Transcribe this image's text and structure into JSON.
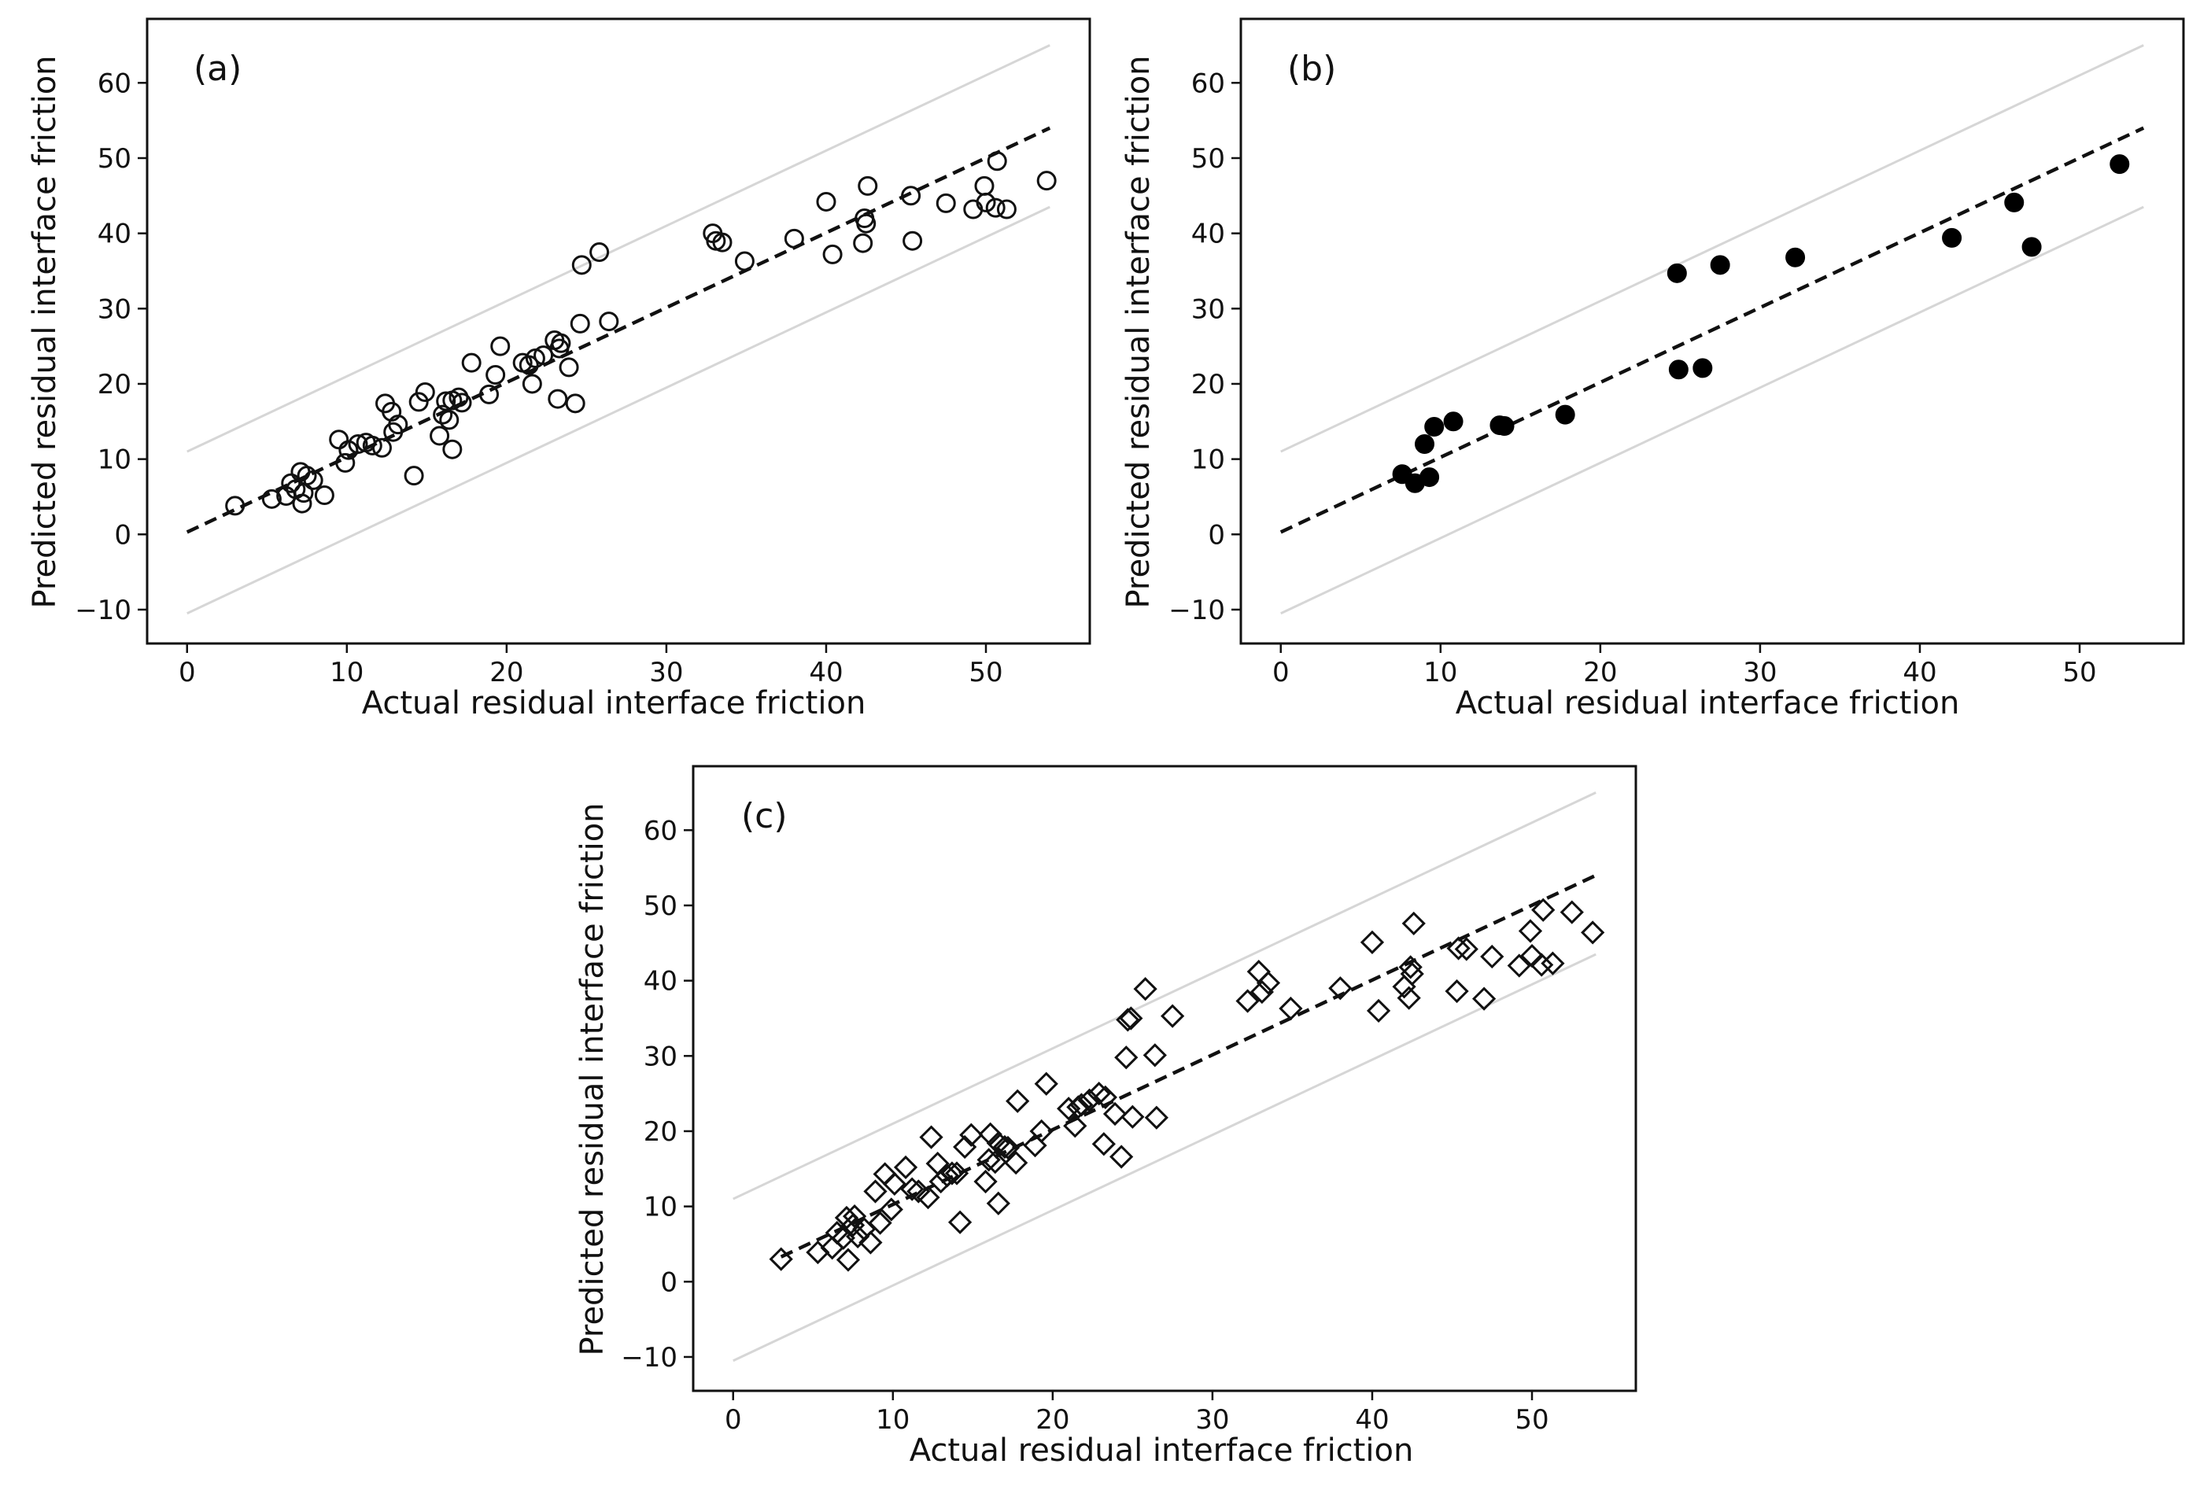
{
  "chart_data": [
    {
      "type": "scatter",
      "panel_label": "(a)",
      "marker": "open-circle",
      "xlabel": "Actual residual interface friction",
      "ylabel": "Predicted residual interface friction",
      "xlim": [
        -2.5,
        56.5
      ],
      "ylim": [
        -14.5,
        68.5
      ],
      "xticks": [
        0,
        10,
        20,
        30,
        40,
        50
      ],
      "yticks": [
        -10,
        0,
        10,
        20,
        30,
        40,
        50,
        60
      ],
      "xtick_labels": [
        "0",
        "10",
        "20",
        "30",
        "40",
        "50"
      ],
      "ytick_labels": [
        "−10",
        "0",
        "10",
        "20",
        "30",
        "40",
        "50",
        "60"
      ],
      "fit_line": {
        "style": "dashed",
        "points": [
          [
            0,
            0.3
          ],
          [
            54,
            54
          ]
        ]
      },
      "bounds": [
        {
          "style": "solid-lightgray",
          "points": [
            [
              0,
              11
            ],
            [
              54,
              65
            ]
          ]
        },
        {
          "style": "solid-lightgray",
          "points": [
            [
              0,
              -10.5
            ],
            [
              54,
              43.5
            ]
          ]
        }
      ],
      "points": [
        [
          3,
          3.8
        ],
        [
          5.3,
          4.7
        ],
        [
          6.2,
          5.1
        ],
        [
          6.5,
          6.8
        ],
        [
          6.8,
          6.0
        ],
        [
          7.1,
          8.3
        ],
        [
          7.2,
          4.1
        ],
        [
          7.5,
          7.8
        ],
        [
          7.3,
          5.5
        ],
        [
          7.9,
          7.2
        ],
        [
          8.6,
          5.2
        ],
        [
          9.5,
          12.6
        ],
        [
          9.9,
          9.5
        ],
        [
          10.1,
          11.2
        ],
        [
          10.7,
          12.0
        ],
        [
          11.2,
          12.2
        ],
        [
          11.6,
          11.8
        ],
        [
          12.2,
          11.5
        ],
        [
          12.4,
          17.4
        ],
        [
          12.8,
          16.3
        ],
        [
          12.9,
          13.6
        ],
        [
          13.2,
          14.6
        ],
        [
          14.2,
          7.8
        ],
        [
          14.5,
          17.6
        ],
        [
          14.9,
          18.9
        ],
        [
          15.8,
          13.1
        ],
        [
          16.0,
          15.9
        ],
        [
          16.2,
          17.7
        ],
        [
          16.4,
          15.2
        ],
        [
          16.6,
          11.3
        ],
        [
          16.6,
          17.8
        ],
        [
          17.0,
          18.2
        ],
        [
          17.2,
          17.5
        ],
        [
          17.8,
          22.8
        ],
        [
          18.9,
          18.6
        ],
        [
          19.3,
          21.2
        ],
        [
          19.6,
          25.0
        ],
        [
          21.0,
          22.8
        ],
        [
          21.4,
          22.5
        ],
        [
          21.6,
          20.0
        ],
        [
          21.8,
          23.4
        ],
        [
          22.3,
          23.8
        ],
        [
          23.0,
          25.8
        ],
        [
          23.2,
          18.0
        ],
        [
          23.3,
          24.7
        ],
        [
          23.4,
          25.4
        ],
        [
          23.9,
          22.2
        ],
        [
          24.3,
          17.4
        ],
        [
          24.6,
          28.0
        ],
        [
          24.7,
          35.8
        ],
        [
          25.8,
          37.5
        ],
        [
          26.4,
          28.3
        ],
        [
          32.9,
          40.0
        ],
        [
          33.1,
          39.0
        ],
        [
          33.5,
          38.8
        ],
        [
          34.9,
          36.3
        ],
        [
          38.0,
          39.3
        ],
        [
          40.0,
          44.2
        ],
        [
          40.4,
          37.2
        ],
        [
          42.3,
          38.7
        ],
        [
          42.4,
          42.0
        ],
        [
          42.5,
          41.3
        ],
        [
          42.6,
          46.3
        ],
        [
          45.3,
          45.0
        ],
        [
          45.4,
          39.0
        ],
        [
          47.5,
          44.0
        ],
        [
          49.2,
          43.2
        ],
        [
          49.9,
          46.3
        ],
        [
          50.0,
          44.1
        ],
        [
          50.6,
          43.4
        ],
        [
          50.7,
          49.6
        ],
        [
          51.3,
          43.2
        ],
        [
          53.8,
          47.0
        ]
      ]
    },
    {
      "type": "scatter",
      "panel_label": "(b)",
      "marker": "filled-circle",
      "xlabel": "Actual residual interface friction",
      "ylabel": "Predicted residual interface friction",
      "xlim": [
        -2.5,
        56.5
      ],
      "ylim": [
        -14.5,
        68.5
      ],
      "xticks": [
        0,
        10,
        20,
        30,
        40,
        50
      ],
      "yticks": [
        -10,
        0,
        10,
        20,
        30,
        40,
        50,
        60
      ],
      "xtick_labels": [
        "0",
        "10",
        "20",
        "30",
        "40",
        "50"
      ],
      "ytick_labels": [
        "−10",
        "0",
        "10",
        "20",
        "30",
        "40",
        "50",
        "60"
      ],
      "fit_line": {
        "style": "dashed",
        "points": [
          [
            0,
            0.3
          ],
          [
            54,
            54
          ]
        ]
      },
      "bounds": [
        {
          "style": "solid-lightgray",
          "points": [
            [
              0,
              11
            ],
            [
              54,
              65
            ]
          ]
        },
        {
          "style": "solid-lightgray",
          "points": [
            [
              0,
              -10.5
            ],
            [
              54,
              43.5
            ]
          ]
        }
      ],
      "points": [
        [
          7.6,
          8.0
        ],
        [
          8.4,
          6.8
        ],
        [
          9.0,
          12.0
        ],
        [
          9.3,
          7.6
        ],
        [
          9.6,
          14.3
        ],
        [
          10.8,
          15.0
        ],
        [
          13.7,
          14.5
        ],
        [
          14.0,
          14.4
        ],
        [
          17.8,
          15.9
        ],
        [
          24.8,
          34.7
        ],
        [
          24.9,
          21.9
        ],
        [
          26.4,
          22.1
        ],
        [
          27.5,
          35.8
        ],
        [
          32.2,
          36.8
        ],
        [
          42.0,
          39.4
        ],
        [
          45.9,
          44.1
        ],
        [
          47.0,
          38.2
        ],
        [
          52.5,
          49.2
        ]
      ]
    },
    {
      "type": "scatter",
      "panel_label": "(c)",
      "marker": "open-diamond",
      "xlabel": "Actual residual interface friction",
      "ylabel": "Predicted residual interface friction",
      "xlim": [
        -2.5,
        56.5
      ],
      "ylim": [
        -14.5,
        68.5
      ],
      "xticks": [
        0,
        10,
        20,
        30,
        40,
        50
      ],
      "yticks": [
        -10,
        0,
        10,
        20,
        30,
        40,
        50,
        60
      ],
      "xtick_labels": [
        "0",
        "10",
        "20",
        "30",
        "40",
        "50"
      ],
      "ytick_labels": [
        "−10",
        "0",
        "10",
        "20",
        "30",
        "40",
        "50",
        "60"
      ],
      "fit_line": {
        "style": "dashed",
        "points": [
          [
            3,
            3.3
          ],
          [
            54,
            54
          ]
        ]
      },
      "bounds": [
        {
          "style": "solid-lightgray",
          "points": [
            [
              0,
              11
            ],
            [
              54,
              65
            ]
          ]
        },
        {
          "style": "solid-lightgray",
          "points": [
            [
              0,
              -10.5
            ],
            [
              54,
              43.5
            ]
          ]
        }
      ],
      "points": [
        [
          3,
          3.0
        ],
        [
          5.3,
          3.9
        ],
        [
          6.2,
          4.5
        ],
        [
          6.5,
          6.5
        ],
        [
          6.9,
          5.8
        ],
        [
          7.1,
          8.5
        ],
        [
          7.2,
          2.9
        ],
        [
          7.5,
          7.5
        ],
        [
          7.6,
          8.7
        ],
        [
          7.8,
          6.0
        ],
        [
          8.2,
          7.0
        ],
        [
          8.6,
          5.2
        ],
        [
          8.9,
          12.0
        ],
        [
          9.2,
          7.8
        ],
        [
          9.5,
          14.3
        ],
        [
          9.9,
          9.6
        ],
        [
          10.1,
          13.0
        ],
        [
          10.8,
          15.2
        ],
        [
          11.2,
          12.3
        ],
        [
          11.6,
          12.0
        ],
        [
          12.2,
          11.2
        ],
        [
          12.4,
          19.2
        ],
        [
          12.8,
          15.7
        ],
        [
          13.0,
          13.3
        ],
        [
          13.4,
          14.1
        ],
        [
          13.7,
          14.4
        ],
        [
          14.0,
          14.4
        ],
        [
          14.2,
          7.9
        ],
        [
          14.5,
          17.9
        ],
        [
          14.9,
          19.5
        ],
        [
          15.8,
          13.3
        ],
        [
          16.0,
          16.2
        ],
        [
          16.1,
          19.6
        ],
        [
          16.4,
          15.9
        ],
        [
          16.6,
          10.4
        ],
        [
          16.6,
          18.4
        ],
        [
          17.0,
          17.9
        ],
        [
          17.2,
          17.8
        ],
        [
          17.7,
          15.8
        ],
        [
          17.8,
          24.0
        ],
        [
          18.9,
          18.1
        ],
        [
          19.3,
          20.0
        ],
        [
          19.6,
          26.3
        ],
        [
          21.0,
          23.0
        ],
        [
          21.4,
          20.7
        ],
        [
          21.6,
          23.2
        ],
        [
          21.8,
          23.5
        ],
        [
          22.3,
          24.1
        ],
        [
          22.9,
          25.0
        ],
        [
          23.2,
          18.3
        ],
        [
          23.3,
          24.5
        ],
        [
          23.9,
          22.3
        ],
        [
          24.3,
          16.6
        ],
        [
          24.6,
          29.8
        ],
        [
          24.7,
          34.8
        ],
        [
          24.9,
          35.0
        ],
        [
          25.0,
          21.9
        ],
        [
          25.8,
          38.9
        ],
        [
          26.4,
          30.1
        ],
        [
          26.5,
          21.8
        ],
        [
          27.5,
          35.3
        ],
        [
          32.2,
          37.3
        ],
        [
          32.9,
          41.2
        ],
        [
          33.1,
          38.5
        ],
        [
          33.5,
          39.7
        ],
        [
          34.9,
          36.3
        ],
        [
          38.0,
          39.0
        ],
        [
          40.0,
          45.1
        ],
        [
          40.4,
          36.0
        ],
        [
          42.0,
          39.2
        ],
        [
          42.3,
          37.7
        ],
        [
          42.4,
          41.8
        ],
        [
          42.5,
          40.9
        ],
        [
          42.6,
          47.6
        ],
        [
          45.3,
          38.6
        ],
        [
          45.4,
          44.3
        ],
        [
          45.9,
          44.2
        ],
        [
          47.0,
          37.6
        ],
        [
          47.5,
          43.2
        ],
        [
          49.2,
          42.0
        ],
        [
          49.9,
          46.6
        ],
        [
          50.0,
          43.3
        ],
        [
          50.6,
          42.1
        ],
        [
          50.7,
          49.4
        ],
        [
          51.3,
          42.3
        ],
        [
          52.5,
          49.1
        ],
        [
          53.8,
          46.4
        ]
      ]
    }
  ]
}
